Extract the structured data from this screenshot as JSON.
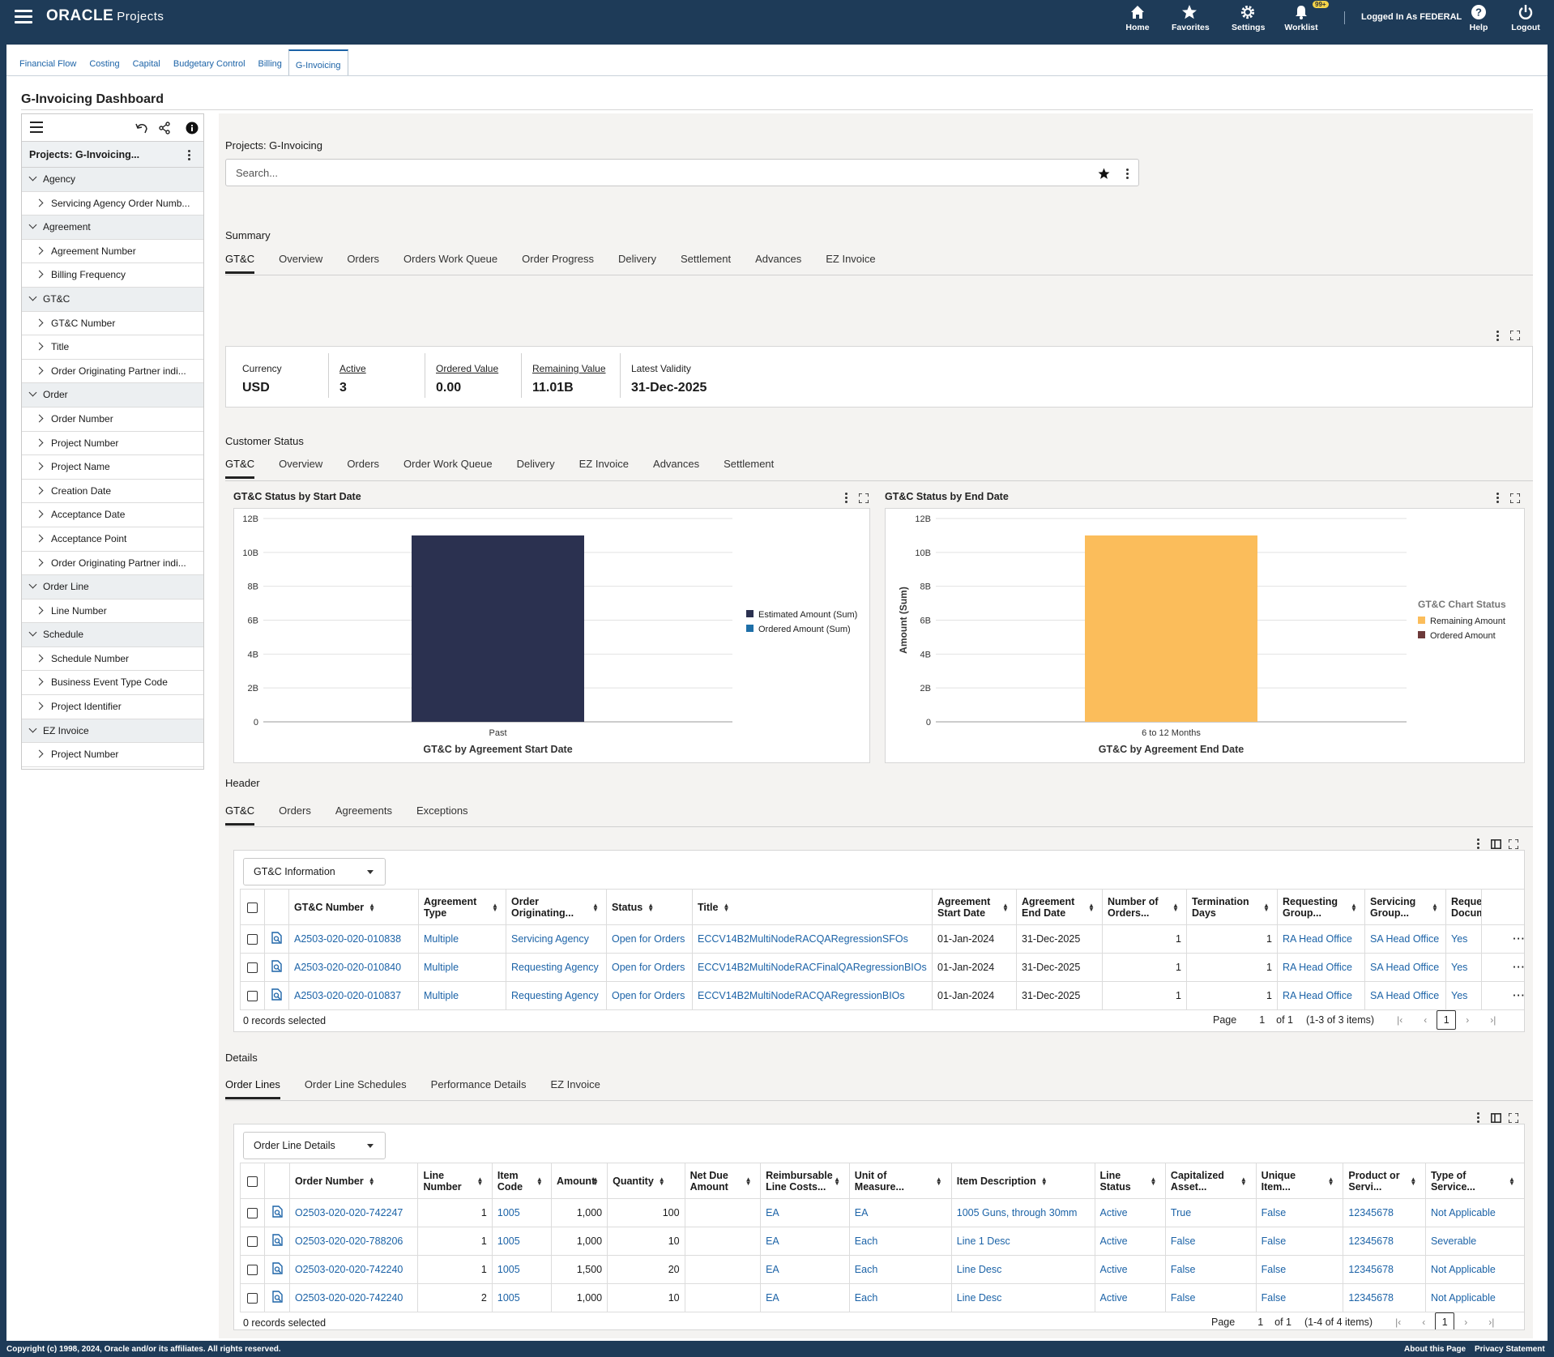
{
  "header": {
    "logo": "ORACLE",
    "app": "Projects",
    "nav": [
      {
        "label": "Home",
        "icon": "home-icon"
      },
      {
        "label": "Favorites",
        "icon": "star-icon"
      },
      {
        "label": "Settings",
        "icon": "gear-icon"
      },
      {
        "label": "Worklist",
        "icon": "bell-icon",
        "badge": "99+"
      },
      {
        "label": "Help",
        "icon": "help-icon"
      },
      {
        "label": "Logout",
        "icon": "power-icon"
      }
    ],
    "logged_in": "Logged In As FEDERAL"
  },
  "page_tabs": [
    "Financial Flow",
    "Costing",
    "Capital",
    "Budgetary Control",
    "Billing",
    "G-Invoicing"
  ],
  "active_page_tab": "G-Invoicing",
  "dashboard_title": "G-Invoicing Dashboard",
  "sidebar": {
    "title": "Projects: G-Invoicing...",
    "groups": [
      {
        "label": "Agency",
        "items": [
          "Servicing Agency Order Numb..."
        ]
      },
      {
        "label": "Agreement",
        "items": [
          "Agreement Number",
          "Billing Frequency"
        ]
      },
      {
        "label": "GT&C",
        "items": [
          "GT&C Number",
          "Title",
          "Order Originating Partner indi..."
        ]
      },
      {
        "label": "Order",
        "items": [
          "Order Number",
          "Project Number",
          "Project Name",
          "Creation Date",
          "Acceptance Date",
          "Acceptance Point",
          "Order Originating Partner indi..."
        ]
      },
      {
        "label": "Order Line",
        "items": [
          "Line Number"
        ]
      },
      {
        "label": "Schedule",
        "items": [
          "Schedule Number",
          "Business Event Type Code",
          "Project Identifier"
        ]
      },
      {
        "label": "EZ Invoice",
        "items": [
          "Project Number"
        ]
      }
    ]
  },
  "search": {
    "label": "Projects: G-Invoicing",
    "placeholder": "Search..."
  },
  "summary": {
    "heading": "Summary",
    "tabs": [
      "GT&C",
      "Overview",
      "Orders",
      "Orders Work Queue",
      "Order Progress",
      "Delivery",
      "Settlement",
      "Advances",
      "EZ Invoice"
    ],
    "metrics": [
      {
        "label": "Currency",
        "value": "USD",
        "link": false
      },
      {
        "label": "Active",
        "value": "3",
        "link": true
      },
      {
        "label": "Ordered Value",
        "value": "0.00",
        "link": true
      },
      {
        "label": "Remaining Value",
        "value": "11.01B",
        "link": true
      },
      {
        "label": "Latest Validity",
        "value": "31-Dec-2025",
        "link": false
      }
    ]
  },
  "customer_status": {
    "heading": "Customer Status",
    "tabs": [
      "GT&C",
      "Overview",
      "Orders",
      "Order Work Queue",
      "Delivery",
      "EZ Invoice",
      "Advances",
      "Settlement"
    ]
  },
  "chart_data": [
    {
      "type": "bar",
      "title": "GT&C Status by Start Date",
      "xlabel": "GT&C by Agreement Start Date",
      "ylabel": "",
      "categories": [
        "Past"
      ],
      "yticks": [
        "0",
        "2B",
        "4B",
        "6B",
        "8B",
        "10B",
        "12B"
      ],
      "ylim": [
        0,
        12
      ],
      "series": [
        {
          "name": "Estimated Amount (Sum)",
          "values": [
            11
          ],
          "color": "#2b3150"
        },
        {
          "name": "Ordered Amount (Sum)",
          "values": [
            0
          ],
          "color": "#1e6fa8"
        }
      ],
      "legend": "right"
    },
    {
      "type": "bar",
      "title": "GT&C Status by End Date",
      "xlabel": "GT&C by Agreement End Date",
      "ylabel": "Amount (Sum)",
      "categories": [
        "6 to 12 Months"
      ],
      "yticks": [
        "0",
        "2B",
        "4B",
        "6B",
        "8B",
        "10B",
        "12B"
      ],
      "ylim": [
        0,
        12
      ],
      "legend_title": "GT&C Chart Status",
      "series": [
        {
          "name": "Remaining Amount",
          "values": [
            11
          ],
          "color": "#fbbd5b"
        },
        {
          "name": "Ordered Amount",
          "values": [
            0
          ],
          "color": "#6d3a3a"
        }
      ],
      "legend": "right"
    }
  ],
  "header_section": {
    "heading": "Header",
    "tabs": [
      "GT&C",
      "Orders",
      "Agreements",
      "Exceptions"
    ],
    "view": "GT&C Information",
    "columns": [
      "GT&C Number",
      "Agreement Type",
      "Order Originating...",
      "Status",
      "Title",
      "Agreement Start Date",
      "Agreement End Date",
      "Number of Orders...",
      "Termination Days",
      "Requesting Group...",
      "Servicing Group...",
      "Request Docume"
    ],
    "rows": [
      [
        "A2503-020-020-010838",
        "Multiple",
        "Servicing Agency",
        "Open for Orders",
        "ECCV14B2MultiNodeRACQARegressionSFOs",
        "01-Jan-2024",
        "31-Dec-2025",
        "1",
        "1",
        "RA Head Office",
        "SA Head Office",
        "Yes"
      ],
      [
        "A2503-020-020-010840",
        "Multiple",
        "Requesting Agency",
        "Open for Orders",
        "ECCV14B2MultiNodeRACFinalQARegressionBIOs",
        "01-Jan-2024",
        "31-Dec-2025",
        "1",
        "1",
        "RA Head Office",
        "SA Head Office",
        "Yes"
      ],
      [
        "A2503-020-020-010837",
        "Multiple",
        "Requesting Agency",
        "Open for Orders",
        "ECCV14B2MultiNodeRACQARegressionBIOs",
        "01-Jan-2024",
        "31-Dec-2025",
        "1",
        "1",
        "RA Head Office",
        "SA Head Office",
        "Yes"
      ]
    ],
    "selected": "0 records selected",
    "page_label": "Page",
    "page": "1",
    "of": "of 1",
    "range": "(1-3 of 3 items)"
  },
  "details_section": {
    "heading": "Details",
    "tabs": [
      "Order Lines",
      "Order Line Schedules",
      "Performance Details",
      "EZ Invoice"
    ],
    "view": "Order Line Details",
    "columns": [
      "Order Number",
      "Line Number",
      "Item Code",
      "Amount",
      "Quantity",
      "Net Due Amount",
      "Reimbursable Line Costs...",
      "Unit of Measure...",
      "Item Description",
      "Line Status",
      "Capitalized Asset...",
      "Unique Item...",
      "Product or Servi...",
      "Type of Service..."
    ],
    "rows": [
      [
        "O2503-020-020-742247",
        "1",
        "1005",
        "1,000",
        "100",
        "",
        "EA",
        "EA",
        "1005 Guns, through 30mm",
        "Active",
        "True",
        "False",
        "12345678",
        "Not Applicable"
      ],
      [
        "O2503-020-020-788206",
        "1",
        "1005",
        "1,000",
        "10",
        "",
        "EA",
        "Each",
        "Line 1 Desc",
        "Active",
        "False",
        "False",
        "12345678",
        "Severable"
      ],
      [
        "O2503-020-020-742240",
        "1",
        "1005",
        "1,500",
        "20",
        "",
        "EA",
        "Each",
        "Line Desc",
        "Active",
        "False",
        "False",
        "12345678",
        "Not Applicable"
      ],
      [
        "O2503-020-020-742240",
        "2",
        "1005",
        "1,000",
        "10",
        "",
        "EA",
        "Each",
        "Line Desc",
        "Active",
        "False",
        "False",
        "12345678",
        "Not Applicable"
      ]
    ],
    "selected": "0 records selected",
    "page_label": "Page",
    "page": "1",
    "of": "of 1",
    "range": "(1-4 of 4 items)"
  },
  "footer": {
    "copyright": "Copyright (c) 1998, 2024, Oracle and/or its affiliates. All rights reserved.",
    "about": "About this Page",
    "privacy": "Privacy Statement"
  }
}
